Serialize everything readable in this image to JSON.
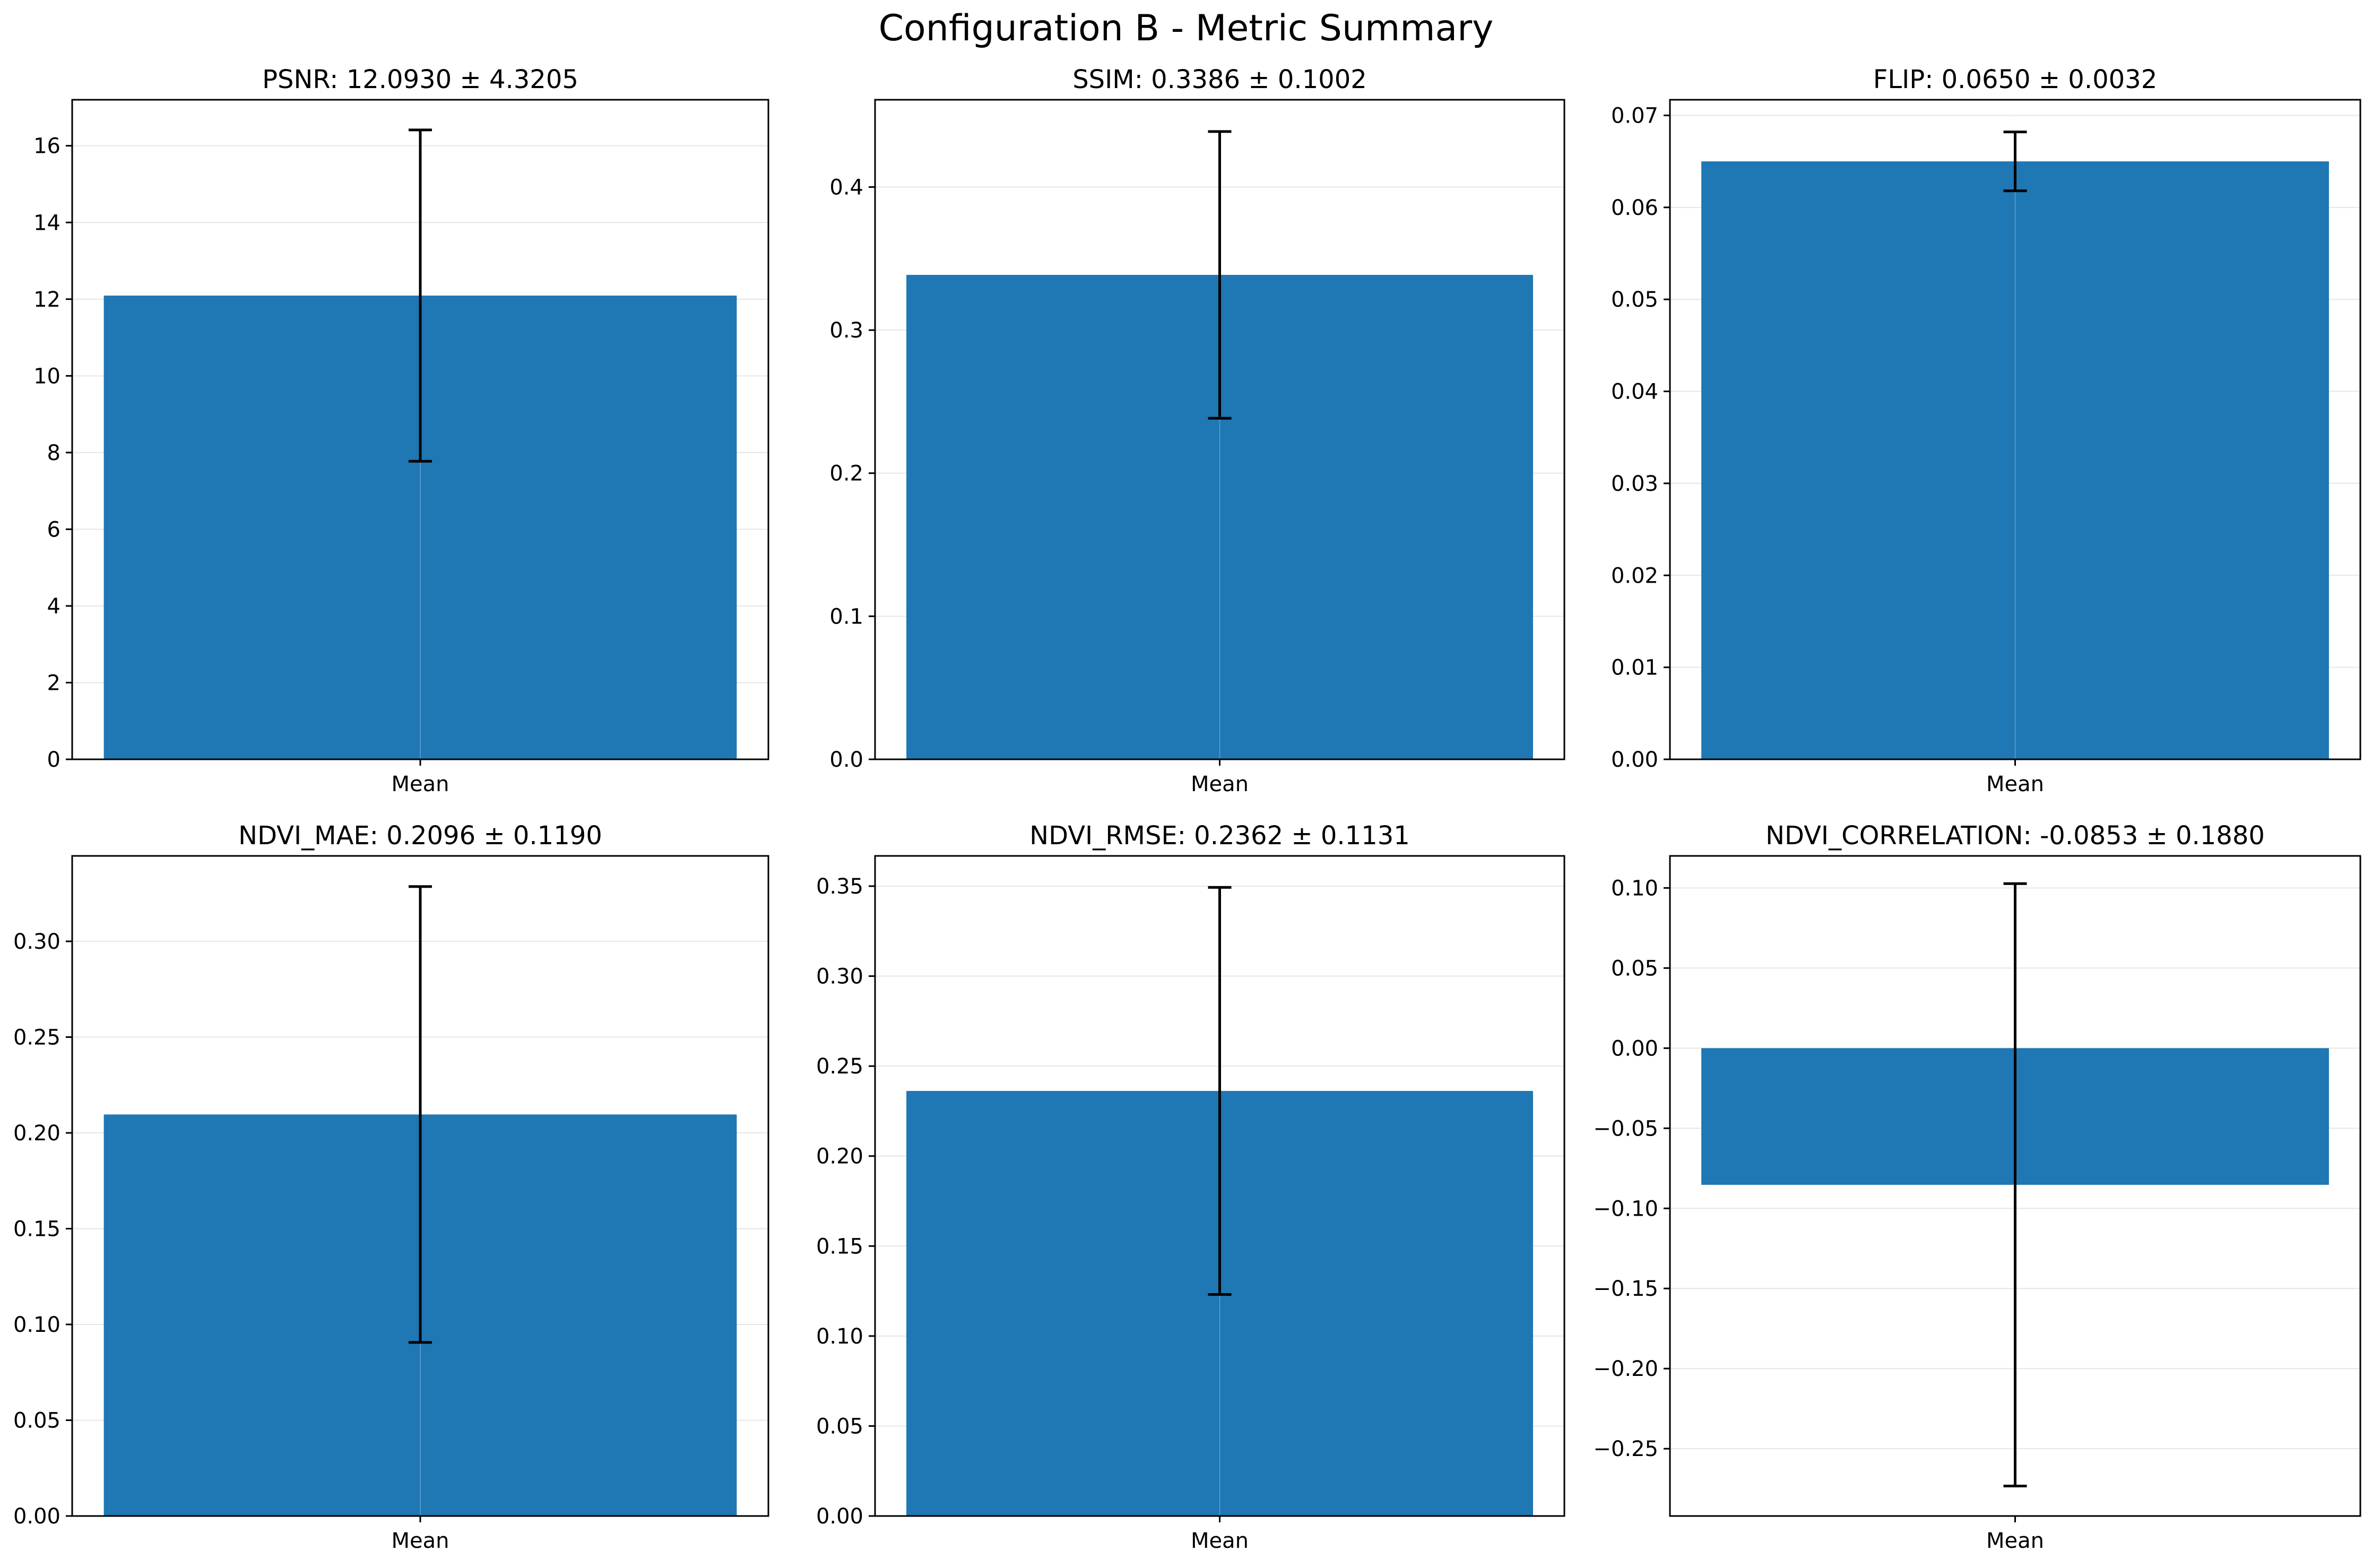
{
  "figure": {
    "title": "Configuration B - Metric Summary"
  },
  "style": {
    "bar_color": "#1f77b4",
    "error_color": "#000000",
    "grid_color": "#e6e6e6",
    "axis_color": "#000000",
    "background": "#ffffff"
  },
  "chart_data": [
    {
      "type": "bar",
      "title": "PSNR: 12.0930 ± 4.3205",
      "categories": [
        "Mean"
      ],
      "values": [
        12.093
      ],
      "errors": [
        4.3205
      ],
      "ylim": [
        0,
        17.2
      ],
      "yticks": [
        0,
        2,
        4,
        6,
        8,
        10,
        12,
        14,
        16
      ],
      "ytick_labels": [
        "0",
        "2",
        "4",
        "6",
        "8",
        "10",
        "12",
        "14",
        "16"
      ],
      "grid": true
    },
    {
      "type": "bar",
      "title": "SSIM: 0.3386 ± 0.1002",
      "categories": [
        "Mean"
      ],
      "values": [
        0.3386
      ],
      "errors": [
        0.1002
      ],
      "ylim": [
        0,
        0.461
      ],
      "yticks": [
        0.0,
        0.1,
        0.2,
        0.3,
        0.4
      ],
      "ytick_labels": [
        "0.0",
        "0.1",
        "0.2",
        "0.3",
        "0.4"
      ],
      "grid": true
    },
    {
      "type": "bar",
      "title": "FLIP: 0.0650 ± 0.0032",
      "categories": [
        "Mean"
      ],
      "values": [
        0.065
      ],
      "errors": [
        0.0032
      ],
      "ylim": [
        0,
        0.0717
      ],
      "yticks": [
        0.0,
        0.01,
        0.02,
        0.03,
        0.04,
        0.05,
        0.06,
        0.07
      ],
      "ytick_labels": [
        "0.00",
        "0.01",
        "0.02",
        "0.03",
        "0.04",
        "0.05",
        "0.06",
        "0.07"
      ],
      "grid": true
    },
    {
      "type": "bar",
      "title": "NDVI_MAE: 0.2096 ± 0.1190",
      "categories": [
        "Mean"
      ],
      "values": [
        0.2096
      ],
      "errors": [
        0.119
      ],
      "ylim": [
        0,
        0.3446
      ],
      "yticks": [
        0.0,
        0.05,
        0.1,
        0.15,
        0.2,
        0.25,
        0.3
      ],
      "ytick_labels": [
        "0.00",
        "0.05",
        "0.10",
        "0.15",
        "0.20",
        "0.25",
        "0.30"
      ],
      "grid": true
    },
    {
      "type": "bar",
      "title": "NDVI_RMSE: 0.2362 ± 0.1131",
      "categories": [
        "Mean"
      ],
      "values": [
        0.2362
      ],
      "errors": [
        0.1131
      ],
      "ylim": [
        0,
        0.3668
      ],
      "yticks": [
        0.0,
        0.05,
        0.1,
        0.15,
        0.2,
        0.25,
        0.3,
        0.35
      ],
      "ytick_labels": [
        "0.00",
        "0.05",
        "0.10",
        "0.15",
        "0.20",
        "0.25",
        "0.30",
        "0.35"
      ],
      "grid": true
    },
    {
      "type": "bar",
      "title": "NDVI_CORRELATION: -0.0853 ± 0.1880",
      "categories": [
        "Mean"
      ],
      "values": [
        -0.0853
      ],
      "errors": [
        0.188
      ],
      "ylim": [
        -0.292,
        0.12
      ],
      "yticks": [
        -0.25,
        -0.2,
        -0.15,
        -0.1,
        -0.05,
        0.0,
        0.05,
        0.1
      ],
      "ytick_labels": [
        "−0.25",
        "−0.20",
        "−0.15",
        "−0.10",
        "−0.05",
        "0.00",
        "0.05",
        "0.10"
      ],
      "grid": true
    }
  ]
}
